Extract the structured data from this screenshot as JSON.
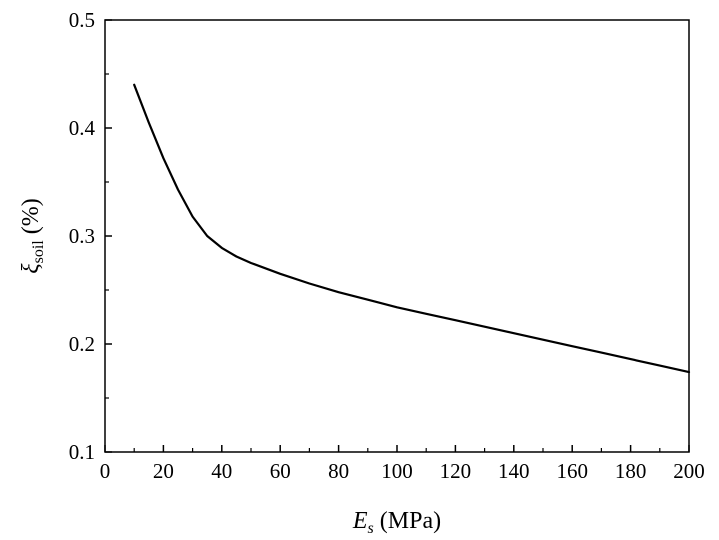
{
  "chart_data": {
    "type": "line",
    "xlabel_main": "E",
    "xlabel_sub": "s",
    "xlabel_unit": " (MPa)",
    "ylabel_main": "ξ",
    "ylabel_sub": "soil",
    "ylabel_unit": " (%)",
    "xlim": [
      0,
      200
    ],
    "ylim": [
      0.1,
      0.5
    ],
    "x_ticks": [
      0,
      20,
      40,
      60,
      80,
      100,
      120,
      140,
      160,
      180,
      200
    ],
    "x_tick_labels": [
      "0",
      "20",
      "40",
      "60",
      "80",
      "100",
      "120",
      "140",
      "160",
      "180",
      "200"
    ],
    "y_ticks": [
      0.1,
      0.2,
      0.3,
      0.4,
      0.5
    ],
    "y_tick_labels": [
      "0.1",
      "0.2",
      "0.3",
      "0.4",
      "0.5"
    ],
    "grid": false,
    "legend": "none",
    "color": "#000000",
    "series": [
      {
        "x": [
          10,
          15,
          20,
          25,
          30,
          35,
          40,
          45,
          50,
          60,
          70,
          80,
          90,
          100,
          110,
          120,
          130,
          140,
          150,
          160,
          170,
          180,
          190,
          200
        ],
        "y": [
          0.44,
          0.405,
          0.372,
          0.343,
          0.318,
          0.3,
          0.289,
          0.281,
          0.275,
          0.265,
          0.256,
          0.248,
          0.241,
          0.234,
          0.228,
          0.222,
          0.216,
          0.21,
          0.204,
          0.198,
          0.192,
          0.186,
          0.18,
          0.174
        ]
      }
    ]
  }
}
